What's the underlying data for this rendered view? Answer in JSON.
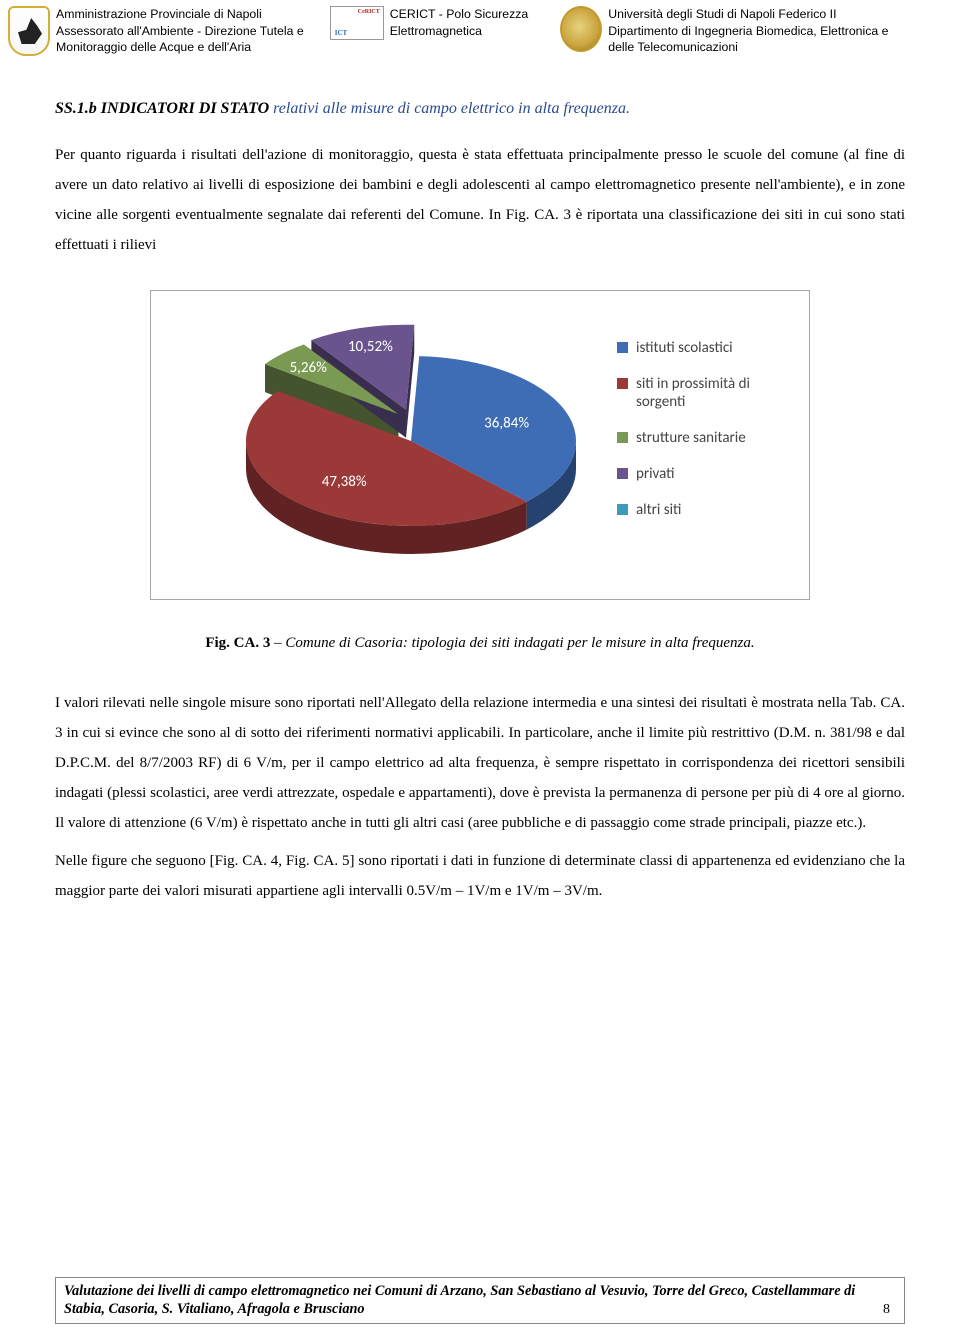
{
  "header": {
    "org1": {
      "line1": "Amministrazione Provinciale di Napoli",
      "line2": "Assessorato all'Ambiente - Direzione Tutela e",
      "line3": "Monitoraggio delle Acque e dell'Aria"
    },
    "org2": {
      "line1": "CERICT - Polo Sicurezza",
      "line2": "Elettromagnetica"
    },
    "org3": {
      "line1": "Università degli Studi di Napoli Federico II",
      "line2": "Dipartimento di Ingegneria Biomedica, Elettronica e",
      "line3": "delle Telecomunicazioni"
    }
  },
  "title": {
    "code": "SS.1.b I",
    "smallcaps": "NDICATORI DI STATO",
    "rest": " relativi alle misure di campo elettrico in alta frequenza."
  },
  "para1": "Per quanto riguarda i risultati dell'azione di monitoraggio, questa è stata effettuata principalmente presso le scuole del comune (al fine di avere un dato relativo ai livelli di esposizione dei bambini e degli adolescenti al campo elettromagnetico presente nell'ambiente), e in zone vicine alle sorgenti eventualmente segnalate dai referenti del Comune. In Fig. CA. 3 è riportata una classificazione dei siti in cui sono stati effettuati i rilievi",
  "chart": {
    "type": "pie-3d",
    "background_color": "#ffffff",
    "border_color": "#a6a6a6",
    "slices": [
      {
        "label": "istituti scolastici",
        "value": 36.84,
        "display": "36,84%",
        "color": "#3e6db5"
      },
      {
        "label": "siti in prossimità di sorgenti",
        "value": 47.38,
        "display": "47,38%",
        "color": "#9b3838"
      },
      {
        "label": "strutture sanitarie",
        "value": 5.26,
        "display": "5,26%",
        "color": "#7a9a54"
      },
      {
        "label": "privati",
        "value": 10.52,
        "display": "10,52%",
        "color": "#6a548e"
      },
      {
        "label": "altri siti",
        "value": 0,
        "display": "",
        "color": "#3c9bb8"
      }
    ],
    "label_font_family": "Calibri, Arial, sans-serif",
    "label_font_size": 15,
    "data_label_color": "#ffffff",
    "exploded_indices": [
      2,
      3
    ]
  },
  "caption": {
    "bold": "Fig. CA. 3",
    "dash": " – ",
    "ital": "Comune di Casoria: tipologia dei siti indagati per le misure in alta frequenza."
  },
  "para2": "I valori rilevati nelle singole misure sono riportati nell'Allegato della relazione intermedia e una sintesi dei risultati è mostrata nella Tab. CA. 3 in cui si evince che sono al di sotto dei riferimenti normativi applicabili. In particolare, anche il limite più restrittivo (D.M. n. 381/98 e dal D.P.C.M. del 8/7/2003 RF) di 6 V/m, per il campo elettrico ad alta frequenza, è sempre rispettato in corrispondenza dei ricettori sensibili indagati (plessi scolastici, aree verdi attrezzate, ospedale e appartamenti), dove è prevista la permanenza di persone per più di 4 ore al giorno. Il valore di attenzione (6 V/m) è rispettato anche in tutti gli altri casi (aree pubbliche e di passaggio come strade principali, piazze etc.).",
  "para3": "Nelle figure che seguono [Fig. CA. 4, Fig. CA. 5] sono riportati i dati in funzione di determinate classi di appartenenza ed evidenziano che la maggior parte dei valori misurati appartiene agli intervalli 0.5V/m – 1V/m e 1V/m – 3V/m.",
  "footer": "Valutazione dei livelli di campo elettromagnetico nei Comuni di Arzano, San Sebastiano al Vesuvio, Torre del Greco, Castellammare di Stabia, Casoria, S. Vitaliano, Afragola e Brusciano",
  "page_number": "8"
}
